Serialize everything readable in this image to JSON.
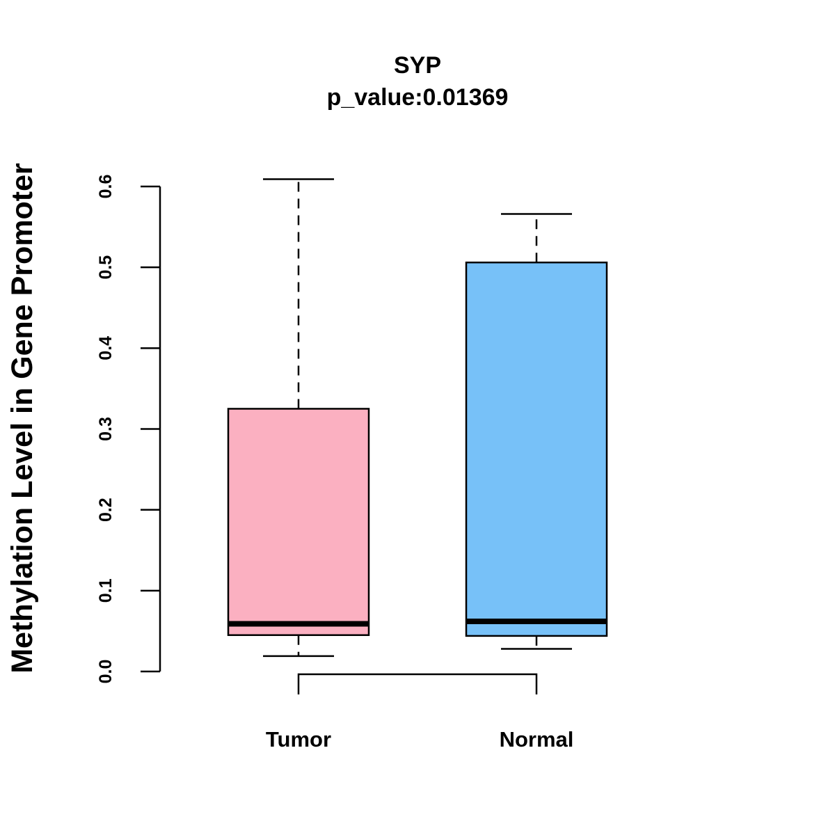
{
  "chart_data": {
    "type": "boxplot",
    "title": "SYP",
    "subtitle": "p_value:0.01369",
    "xlabel": "",
    "ylabel": "Methylation Level in Gene Promoter",
    "ylim": [
      0.0,
      0.6
    ],
    "yticks": [
      0.0,
      0.1,
      0.2,
      0.3,
      0.4,
      0.5,
      0.6
    ],
    "ytick_labels": [
      "0.0",
      "0.1",
      "0.2",
      "0.3",
      "0.4",
      "0.5",
      "0.6"
    ],
    "grid": false,
    "categories": [
      "Tumor",
      "Normal"
    ],
    "boxes": [
      {
        "name": "Tumor",
        "whisker_low": 0.019,
        "q1": 0.045,
        "median": 0.059,
        "q3": 0.325,
        "whisker_high": 0.609,
        "color": "#FBB0C1"
      },
      {
        "name": "Normal",
        "whisker_low": 0.028,
        "q1": 0.044,
        "median": 0.062,
        "q3": 0.506,
        "whisker_high": 0.566,
        "color": "#77C1F8"
      }
    ],
    "significance_bracket": {
      "from": "Tumor",
      "to": "Normal"
    }
  }
}
